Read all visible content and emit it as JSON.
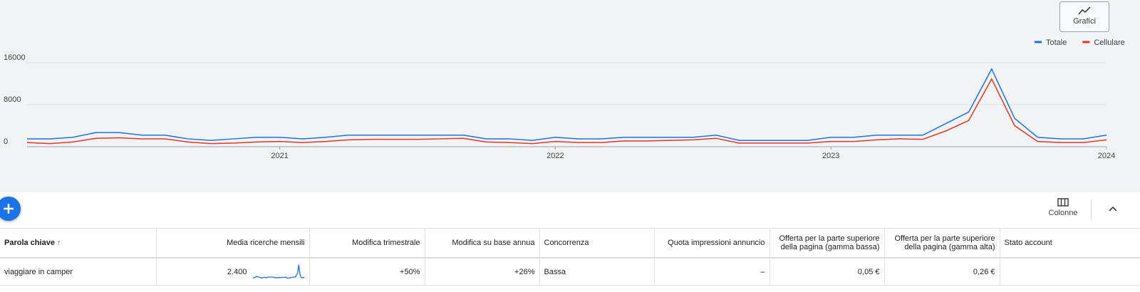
{
  "toolbar": {
    "chart_button": "Grafici",
    "columns_button": "Colonne"
  },
  "chart_data": {
    "type": "line",
    "categories": [
      null,
      null,
      null,
      null,
      null,
      null,
      null,
      null,
      null,
      null,
      null,
      "2021",
      null,
      null,
      null,
      null,
      null,
      null,
      null,
      null,
      null,
      null,
      null,
      "2022",
      null,
      null,
      null,
      null,
      null,
      null,
      null,
      null,
      null,
      null,
      null,
      "2023",
      null,
      null,
      null,
      null,
      null,
      null,
      null,
      null,
      null,
      null,
      null,
      "2024"
    ],
    "series": [
      {
        "name": "Totale",
        "color": "#1a73e8",
        "values": [
          1500,
          1500,
          1800,
          2700,
          2700,
          2200,
          2200,
          1500,
          1200,
          1500,
          1800,
          1800,
          1500,
          1800,
          2200,
          2200,
          2200,
          2200,
          2200,
          2200,
          1500,
          1500,
          1200,
          1800,
          1500,
          1500,
          1800,
          1800,
          1800,
          1800,
          2200,
          1200,
          1200,
          1200,
          1200,
          1800,
          1800,
          2200,
          2200,
          2200,
          4400,
          6600,
          14800,
          5400,
          1800,
          1500,
          1500,
          2200
        ]
      },
      {
        "name": "Cellulare",
        "color": "#ea3323",
        "values": [
          800,
          600,
          900,
          1600,
          1700,
          1500,
          1500,
          900,
          600,
          700,
          900,
          1000,
          800,
          1000,
          1300,
          1400,
          1400,
          1400,
          1500,
          1600,
          900,
          800,
          600,
          1000,
          800,
          800,
          1100,
          1100,
          1200,
          1300,
          1600,
          700,
          700,
          700,
          700,
          1000,
          1000,
          1300,
          1500,
          1400,
          3000,
          5000,
          12900,
          4000,
          1000,
          800,
          800,
          1300
        ]
      }
    ],
    "ylim": [
      0,
      16000
    ],
    "yticks": [
      0,
      8000,
      16000
    ],
    "grid": true,
    "legend_position": "top-right"
  },
  "table": {
    "columns": [
      "Parola chiave",
      "Media ricerche mensili",
      "Modifica trimestrale",
      "Modifica su base annua",
      "Concorrenza",
      "Quota impressioni annuncio",
      "Offerta per la parte superiore della pagina (gamma bassa)",
      "Offerta per la parte superiore della pagina (gamma alta)",
      "Stato account"
    ],
    "rows": [
      [
        "viaggiare in camper",
        "2.400",
        "+50%",
        "+26%",
        "Bassa",
        "–",
        "0,05 €",
        "0,26 €"
      ]
    ]
  }
}
